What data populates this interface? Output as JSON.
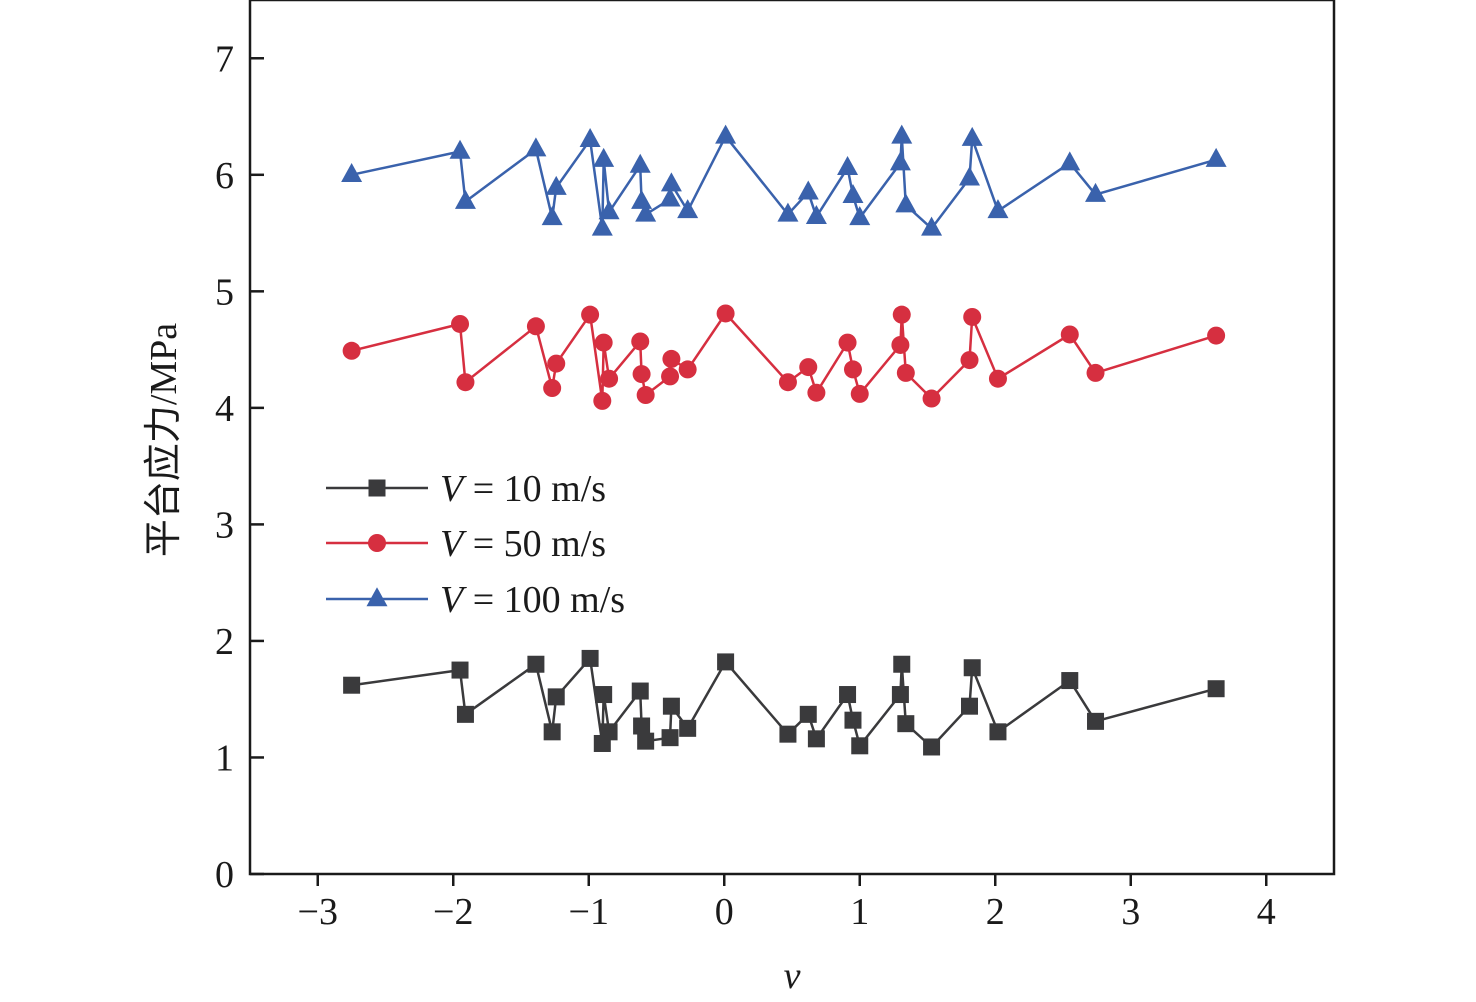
{
  "chart_data": {
    "type": "line",
    "xlabel": "v",
    "ylabel": "平台应力/MPa",
    "xlim": [
      -3.5,
      4.5
    ],
    "ylim": [
      0,
      7.5
    ],
    "xticks": [
      -3,
      -2,
      -1,
      0,
      1,
      2,
      3,
      4
    ],
    "xtick_labels": [
      "−3",
      "−2",
      "−1",
      "0",
      "1",
      "2",
      "3",
      "4"
    ],
    "yticks": [
      0,
      1,
      2,
      3,
      4,
      5,
      6,
      7
    ],
    "ytick_labels": [
      "0",
      "1",
      "2",
      "3",
      "4",
      "5",
      "6",
      "7"
    ],
    "grid": false,
    "legend_position": "center-left",
    "x": [
      -2.75,
      -1.95,
      -1.91,
      -1.39,
      -1.27,
      -1.24,
      -0.99,
      -0.9,
      -0.89,
      -0.85,
      -0.62,
      -0.61,
      -0.58,
      -0.4,
      -0.39,
      -0.27,
      0.01,
      0.47,
      0.62,
      0.68,
      0.91,
      0.95,
      1.0,
      1.3,
      1.31,
      1.34,
      1.53,
      1.81,
      1.83,
      2.02,
      2.55,
      2.74,
      3.63
    ],
    "series": [
      {
        "name": "V = 10 m/s",
        "legend_var": "V",
        "legend_rest": " = 10 m/s",
        "color": "#3a3a3c",
        "marker": "square",
        "values": [
          1.62,
          1.75,
          1.37,
          1.8,
          1.22,
          1.52,
          1.85,
          1.12,
          1.54,
          1.22,
          1.57,
          1.27,
          1.14,
          1.17,
          1.44,
          1.25,
          1.82,
          1.2,
          1.37,
          1.16,
          1.54,
          1.32,
          1.1,
          1.54,
          1.8,
          1.29,
          1.09,
          1.44,
          1.77,
          1.22,
          1.66,
          1.31,
          1.59
        ]
      },
      {
        "name": "V = 50 m/s",
        "legend_var": "V",
        "legend_rest": " = 50 m/s",
        "color": "#d62f40",
        "marker": "circle",
        "values": [
          4.49,
          4.72,
          4.22,
          4.7,
          4.17,
          4.38,
          4.8,
          4.06,
          4.56,
          4.25,
          4.57,
          4.29,
          4.11,
          4.27,
          4.42,
          4.33,
          4.81,
          4.22,
          4.35,
          4.13,
          4.56,
          4.33,
          4.12,
          4.54,
          4.8,
          4.3,
          4.08,
          4.41,
          4.78,
          4.25,
          4.63,
          4.3,
          4.62
        ]
      },
      {
        "name": "V = 100 m/s",
        "legend_var": "V",
        "legend_rest": " = 100 m/s",
        "color": "#3a62ac",
        "marker": "triangle",
        "values": [
          6.0,
          6.2,
          5.77,
          6.22,
          5.63,
          5.89,
          6.3,
          5.54,
          6.13,
          5.68,
          6.08,
          5.77,
          5.66,
          5.79,
          5.92,
          5.69,
          6.33,
          5.66,
          5.85,
          5.64,
          6.06,
          5.82,
          5.63,
          6.1,
          6.33,
          5.74,
          5.54,
          5.97,
          6.31,
          5.69,
          6.1,
          5.83,
          6.13
        ]
      }
    ]
  }
}
